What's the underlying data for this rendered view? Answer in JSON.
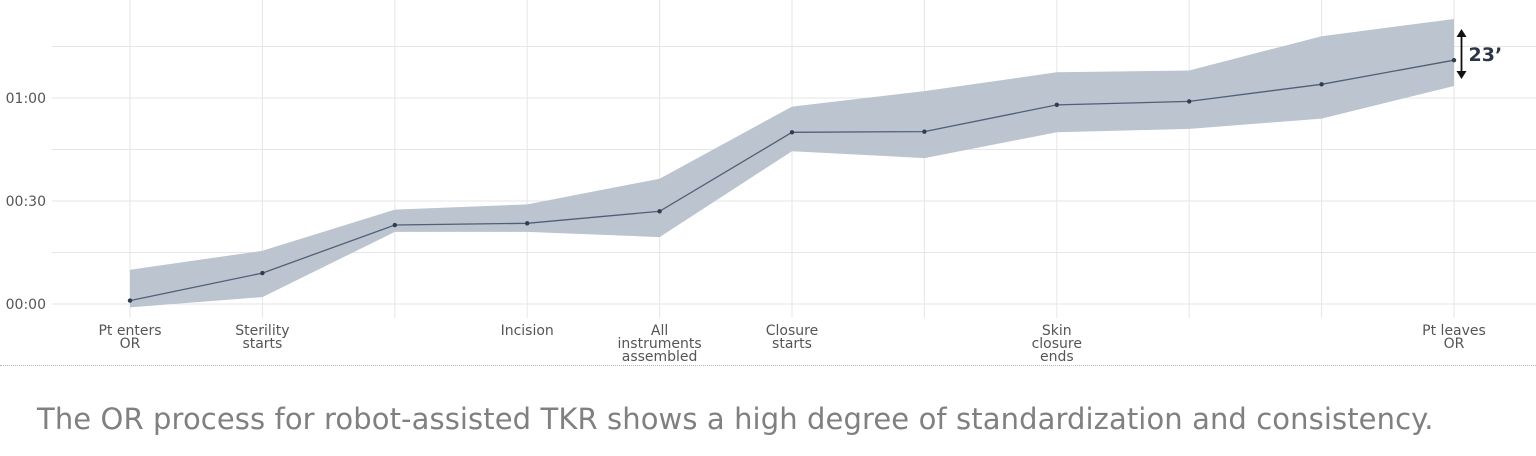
{
  "chart_data": {
    "type": "line",
    "x": [
      "Pt enters OR",
      "Sterility starts",
      "",
      "Incision",
      "All instruments assembled",
      "Closure starts",
      "",
      "Skin closure ends",
      "",
      "",
      "Pt leaves OR"
    ],
    "x_labels": [
      [
        "Pt enters",
        "OR"
      ],
      [
        "Sterility",
        "starts"
      ],
      [],
      [
        "Incision"
      ],
      [
        "All",
        "instruments",
        "assembled"
      ],
      [
        "Closure",
        "starts"
      ],
      [],
      [
        "Skin",
        "closure",
        "ends"
      ],
      [],
      [],
      [
        "Pt leaves",
        "OR"
      ]
    ],
    "series": [
      {
        "role": "median",
        "values": [
          1,
          9,
          23,
          23.5,
          27,
          50,
          50.2,
          58,
          59,
          64,
          71
        ]
      },
      {
        "role": "band-lower",
        "values": [
          -1,
          2,
          21,
          21,
          19.5,
          44.5,
          42.5,
          50,
          51,
          54,
          63.5
        ]
      },
      {
        "role": "band-upper",
        "values": [
          10,
          15.5,
          27.5,
          29,
          36.5,
          57.5,
          62,
          67.5,
          68,
          78,
          83
        ]
      }
    ],
    "yticks": [
      {
        "value": 0,
        "label": "00:00"
      },
      {
        "value": 30,
        "label": "00:30"
      },
      {
        "value": 60,
        "label": "01:00"
      }
    ],
    "ylim": [
      0,
      87
    ],
    "grid": true,
    "annotation": {
      "text": "23’",
      "at_index": 10
    },
    "colors": {
      "band": "#bcc4cf",
      "line": "#4f6075",
      "grid": "#e6e6e6"
    }
  },
  "caption": "The OR process for robot-assisted TKR shows a high degree of standardization and consistency."
}
